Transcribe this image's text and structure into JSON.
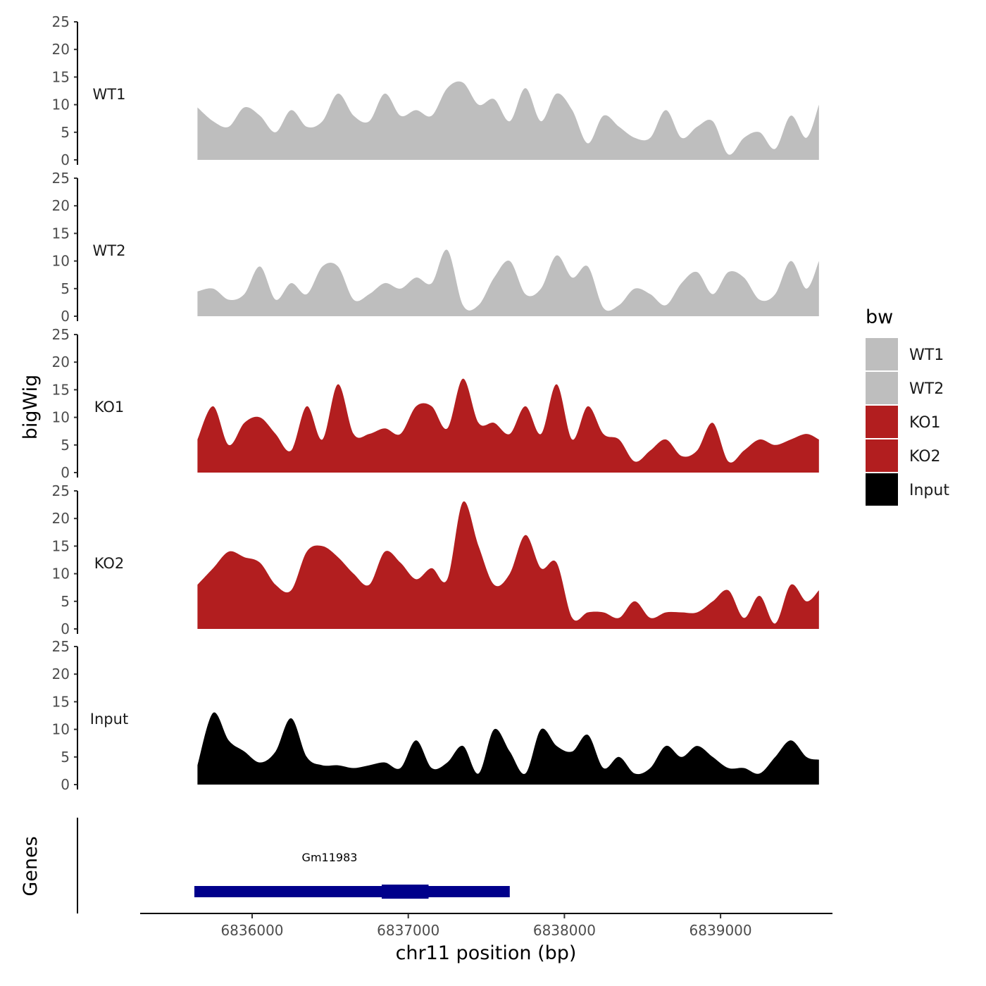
{
  "chart_data": {
    "type": "area",
    "y_axis_label": "bigWig",
    "x_axis_label": "chr11 position (bp)",
    "x_ticks": [
      6836000,
      6837000,
      6838000,
      6839000
    ],
    "x_tick_labels": [
      "6836000",
      "6837000",
      "6838000",
      "6839000"
    ],
    "xlim": [
      6835400,
      6839800
    ],
    "y_ticks": [
      0,
      5,
      10,
      15,
      20,
      25
    ],
    "ylim": [
      0,
      25
    ],
    "grid": false,
    "x": [
      6835650,
      6835750,
      6835850,
      6835950,
      6836050,
      6836150,
      6836250,
      6836350,
      6836450,
      6836550,
      6836650,
      6836750,
      6836850,
      6836950,
      6837050,
      6837150,
      6837250,
      6837350,
      6837450,
      6837550,
      6837650,
      6837750,
      6837850,
      6837950,
      6838050,
      6838150,
      6838250,
      6838350,
      6838450,
      6838550,
      6838650,
      6838750,
      6838850,
      6838950,
      6839050,
      6839150,
      6839250,
      6839350,
      6839450,
      6839550,
      6839630
    ],
    "series": [
      {
        "name": "WT1",
        "color": "#bebebe",
        "values": [
          9.5,
          7,
          6,
          9.5,
          8,
          5,
          9,
          6,
          7,
          12,
          8,
          7,
          12,
          8,
          9,
          8,
          13,
          14,
          10,
          11,
          7,
          13,
          7,
          12,
          9,
          3,
          8,
          6,
          4,
          4,
          9,
          4,
          6,
          7,
          1,
          4,
          5,
          2,
          8,
          4,
          10
        ]
      },
      {
        "name": "WT2",
        "color": "#bebebe",
        "values": [
          4.5,
          5,
          3,
          4,
          9,
          3,
          6,
          4,
          9,
          9,
          3,
          4,
          6,
          5,
          7,
          6,
          12,
          2,
          2,
          7,
          10,
          4,
          5,
          11,
          7,
          9,
          1.5,
          2,
          5,
          4,
          2,
          6,
          8,
          4,
          8,
          7,
          3,
          4,
          10,
          5,
          10
        ]
      },
      {
        "name": "KO1",
        "color": "#b21e1f",
        "values": [
          6,
          12,
          5,
          9,
          10,
          7,
          4,
          12,
          6,
          16,
          7,
          7,
          8,
          7,
          12,
          12,
          8,
          17,
          9,
          9,
          7,
          12,
          7,
          16,
          6,
          12,
          7,
          6,
          2,
          4,
          6,
          3,
          4,
          9,
          2,
          4,
          6,
          5,
          6,
          7,
          6
        ]
      },
      {
        "name": "KO2",
        "color": "#b21e1f",
        "values": [
          8,
          11,
          14,
          13,
          12,
          8,
          7,
          14,
          15,
          13,
          10,
          8,
          14,
          12,
          9,
          11,
          9,
          23,
          15,
          8,
          10,
          17,
          11,
          12,
          2,
          3,
          3,
          2,
          5,
          2,
          3,
          3,
          3,
          5,
          7,
          2,
          6,
          1,
          8,
          5,
          7
        ]
      },
      {
        "name": "Input",
        "color": "#000000",
        "values": [
          3.5,
          13,
          8,
          6,
          4,
          6,
          12,
          5,
          3.5,
          3.5,
          3,
          3.5,
          4,
          3,
          8,
          3,
          4,
          7,
          2,
          10,
          6,
          2,
          10,
          7,
          6,
          9,
          3,
          5,
          2,
          3,
          7,
          5,
          7,
          5,
          3,
          3,
          2,
          5,
          8,
          5,
          4.5
        ]
      }
    ],
    "legend": {
      "title": "bw",
      "position": "right",
      "items": [
        "WT1",
        "WT2",
        "KO1",
        "KO2",
        "Input"
      ]
    },
    "genes_track": {
      "label": "Genes",
      "gene_name": "Gm11983",
      "start": 6835630,
      "end": 6837650,
      "thick_start": 6836830,
      "thick_end": 6837130,
      "color": "#00008b"
    }
  }
}
